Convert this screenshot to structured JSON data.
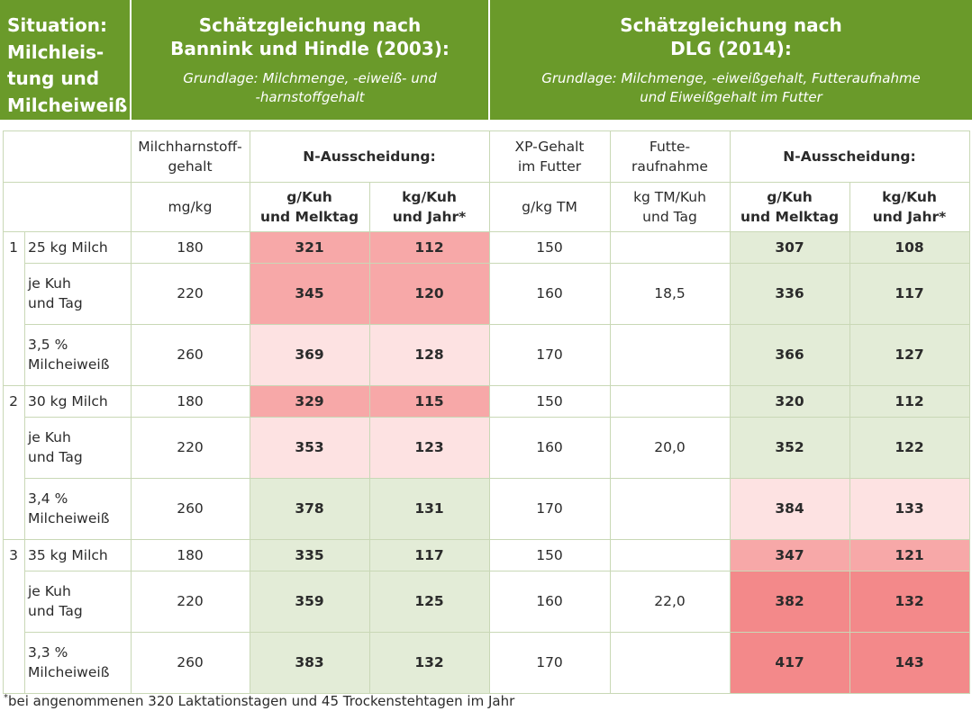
{
  "header": {
    "situation": "Situation: Milchleis-tung und Milcheiweiß",
    "situation_lines": [
      "Situation:",
      "Milchleis-",
      "tung und",
      "Milcheiweiß"
    ],
    "bannink": {
      "title_lines": [
        "Schätzgleichung nach",
        "Bannink und Hindle (2003):"
      ],
      "sub_lines": [
        "Grundlage: Milchmenge, -eiweiß- und",
        "-harnstoffgehalt"
      ]
    },
    "dlg": {
      "title_lines": [
        "Schätzgleichung nach",
        "DLG (2014):"
      ],
      "sub_lines": [
        "Grundlage: Milchmenge, -eiweißgehalt, Futteraufnahme",
        "und Eiweißgehalt im Futter"
      ]
    }
  },
  "columns": {
    "harnstoff": [
      "Milchharnstoff-",
      "gehalt"
    ],
    "n_aus_left": "N-Ausscheidung:",
    "xp": [
      "XP-Gehalt",
      "im Futter"
    ],
    "futter": [
      "Futte-",
      "raufnahme"
    ],
    "n_aus_right": "N-Ausscheidung:"
  },
  "units": {
    "harnstoff": "mg/kg",
    "g_kuh": [
      "g/Kuh",
      "und Melktag"
    ],
    "kg_kuh": [
      "kg/Kuh",
      "und Jahr*"
    ],
    "xp": "g/kg TM",
    "futter": [
      "kg TM/Kuh",
      "und Tag"
    ]
  },
  "rows": [
    {
      "num": "1",
      "label": [
        "25 kg Milch"
      ],
      "harnstoff": "180",
      "b_g": "321",
      "b_kg": "112",
      "b_shade": "rr1",
      "xp": "150",
      "futter": "",
      "d_g": "307",
      "d_kg": "108",
      "d_shade": "gg"
    },
    {
      "num": "",
      "label": [
        "je Kuh",
        "und Tag"
      ],
      "harnstoff": "220",
      "b_g": "345",
      "b_kg": "120",
      "b_shade": "rr1",
      "xp": "160",
      "futter": "18,5",
      "d_g": "336",
      "d_kg": "117",
      "d_shade": "gg"
    },
    {
      "num": "",
      "label": [
        "3,5 %",
        "Milcheiweiß"
      ],
      "harnstoff": "260",
      "b_g": "369",
      "b_kg": "128",
      "b_shade": "rr2",
      "xp": "170",
      "futter": "",
      "d_g": "366",
      "d_kg": "127",
      "d_shade": "gg"
    },
    {
      "num": "2",
      "label": [
        "30 kg Milch"
      ],
      "harnstoff": "180",
      "b_g": "329",
      "b_kg": "115",
      "b_shade": "rr1",
      "xp": "150",
      "futter": "",
      "d_g": "320",
      "d_kg": "112",
      "d_shade": "gg"
    },
    {
      "num": "",
      "label": [
        "je Kuh",
        "und Tag"
      ],
      "harnstoff": "220",
      "b_g": "353",
      "b_kg": "123",
      "b_shade": "rr2",
      "xp": "160",
      "futter": "20,0",
      "d_g": "352",
      "d_kg": "122",
      "d_shade": "gg"
    },
    {
      "num": "",
      "label": [
        "3,4 %",
        "Milcheiweiß"
      ],
      "harnstoff": "260",
      "b_g": "378",
      "b_kg": "131",
      "b_shade": "gg",
      "xp": "170",
      "futter": "",
      "d_g": "384",
      "d_kg": "133",
      "d_shade": "rr2"
    },
    {
      "num": "3",
      "label": [
        "35 kg Milch"
      ],
      "harnstoff": "180",
      "b_g": "335",
      "b_kg": "117",
      "b_shade": "gg",
      "xp": "150",
      "futter": "",
      "d_g": "347",
      "d_kg": "121",
      "d_shade": "rr1"
    },
    {
      "num": "",
      "label": [
        "je Kuh",
        "und Tag"
      ],
      "harnstoff": "220",
      "b_g": "359",
      "b_kg": "125",
      "b_shade": "gg",
      "xp": "160",
      "futter": "22,0",
      "d_g": "382",
      "d_kg": "132",
      "d_shade": "rr3"
    },
    {
      "num": "",
      "label": [
        "3,3 %",
        "Milcheiweiß"
      ],
      "harnstoff": "260",
      "b_g": "383",
      "b_kg": "132",
      "b_shade": "gg",
      "xp": "170",
      "futter": "",
      "d_g": "417",
      "d_kg": "143",
      "d_shade": "rr3"
    }
  ],
  "colors": {
    "header_green": "#6a9a2a",
    "light_red": "#f7a8a8",
    "pale_red": "#fde2e2",
    "strong_red": "#f3898a",
    "light_green": "#e3ecd7",
    "grid_line": "#c9d8b6"
  },
  "footnote": {
    "mark": "*",
    "text": "bei angenommenen 320 Laktationstagen und 45 Trockenstehtagen im Jahr"
  }
}
